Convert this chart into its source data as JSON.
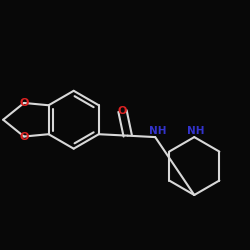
{
  "background_color": "#080808",
  "bond_color": "#d8d8d8",
  "bond_width": 1.5,
  "atom_colors": {
    "O": "#dd2222",
    "N": "#3333cc"
  },
  "font_size_NH": 7.5,
  "font_size_O": 8.0
}
